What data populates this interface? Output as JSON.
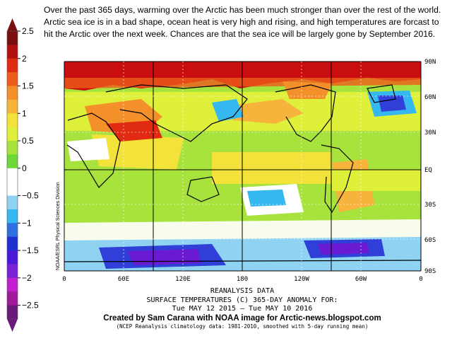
{
  "caption": "Over the past 365 days, warming over the Arctic has been much stronger than over the rest of the world. Arctic sea ice is in a bad shape, ocean heat is very high and rising, and high temperatures are forcast to hit the Arctic over the next week. Chances are that the sea ice will be largely gone by September 2016.",
  "legend": {
    "ticks": [
      "2.5",
      "2",
      "1.5",
      "1",
      "0.5",
      "0",
      "−0.5",
      "−1",
      "−1.5",
      "−2",
      "−2.5"
    ],
    "colors": [
      "#7a0f0f",
      "#b31010",
      "#e02a12",
      "#ee5d1c",
      "#f4902a",
      "#f7b43c",
      "#f3e23a",
      "#dff03a",
      "#a8e23c",
      "#6ed838",
      "#ffffff",
      "#ffffff",
      "#8fd2f2",
      "#35b8f0",
      "#2f6fe0",
      "#1f2fd0",
      "#4a1ad8",
      "#7a22d8",
      "#c220d0",
      "#a01a9a",
      "#6a1a7a"
    ]
  },
  "map": {
    "lat_labels": [
      "90N",
      "60N",
      "30N",
      "EQ",
      "30S",
      "60S",
      "90S"
    ],
    "lon_labels": [
      "0",
      "60E",
      "120E",
      "180",
      "120W",
      "60W",
      "0"
    ],
    "side_credit": "NOAA/ESRL Physical Sciences Division"
  },
  "bottom": {
    "reanalysis": "REANALYSIS DATA",
    "title": "SURFACE TEMPERATURES (C)   365-DAY ANOMALY FOR:",
    "dates": "Tue MAY 12 2015 – Tue MAY 10 2016",
    "credit": "Created by Sam Carana with NOAA image for Arctic-news.blogspot.com",
    "note": "(NCEP Reanalysis climatology data: 1981-2010, smoothed with 5-day running mean)"
  },
  "colors": {
    "very_warm": "#c80e0e",
    "warm": "#f4902a",
    "mild": "#f3e23a",
    "slight": "#a8e23c",
    "neutral": "#ffffff",
    "cool": "#35b8f0",
    "cold": "#2f3fd8",
    "very_cold": "#6a1ad0",
    "land": "#000000"
  }
}
